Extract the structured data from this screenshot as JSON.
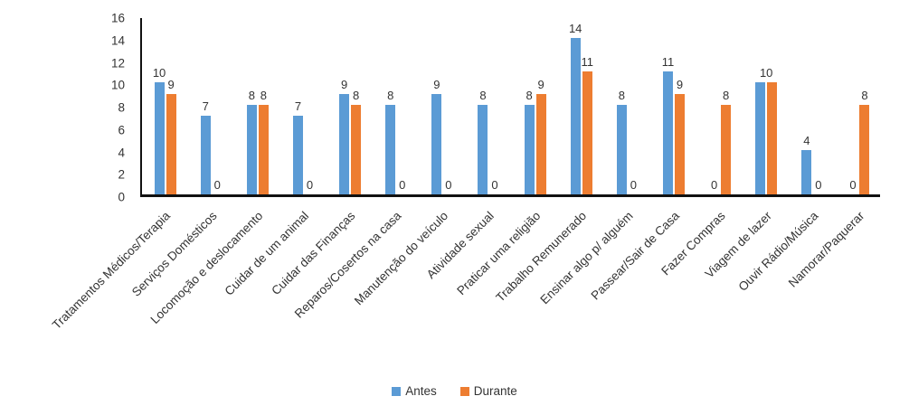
{
  "chart_data": {
    "type": "bar",
    "title": "",
    "xlabel": "",
    "ylabel": "",
    "categories": [
      "Tratamentos Médicos/Terapia",
      "Serviços Domésticos",
      "Locomoção e deslocamento",
      "Cuidar de um animal",
      "Cuidar das Finanças",
      "Reparos/Cosertos na casa",
      "Manutenção do veículo",
      "Atividade sexual",
      "Praticar uma religião",
      "Trabalho Remunerado",
      "Ensinar algo p/ alguém",
      "Passear/Sair de Casa",
      "Fazer Compras",
      "Viagem de lazer",
      "Ouvir Rádio/Música",
      "Namorar/Paquerar"
    ],
    "series": [
      {
        "name": "Antes",
        "color": "#5B9BD5",
        "values": [
          10,
          7,
          8,
          7,
          9,
          8,
          9,
          8,
          8,
          14,
          8,
          11,
          0,
          10,
          4,
          0
        ]
      },
      {
        "name": "Durante",
        "color": "#ED7D31",
        "values": [
          9,
          0,
          8,
          0,
          8,
          0,
          0,
          0,
          9,
          11,
          0,
          9,
          8,
          10,
          0,
          8
        ]
      }
    ],
    "ylim": [
      0,
      16
    ],
    "yticks": [
      0,
      2,
      4,
      6,
      8,
      10,
      12,
      14,
      16
    ],
    "grid": false,
    "data_labels": true,
    "merged_label_indexes": [
      13
    ],
    "legend_position": "bottom"
  },
  "colors": {
    "antes": "#5B9BD5",
    "durante": "#ED7D31",
    "axis": "#111111",
    "text": "#333333"
  }
}
